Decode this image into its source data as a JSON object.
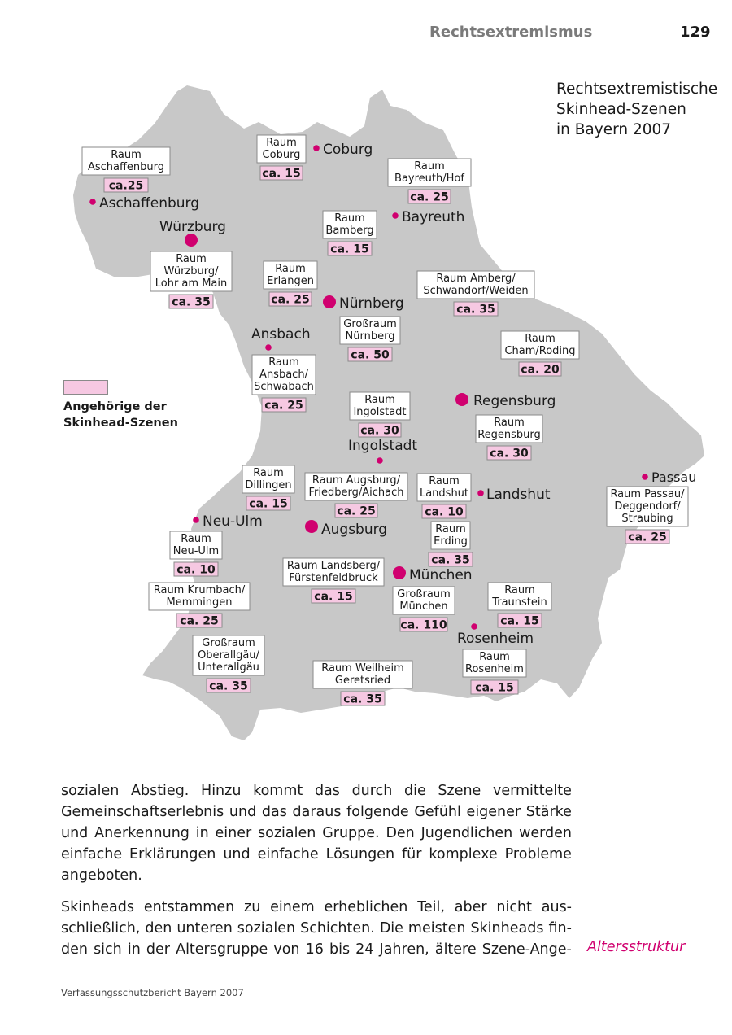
{
  "header": {
    "section": "Rechtsextremismus",
    "page_number": "129"
  },
  "map": {
    "title": [
      "Rechtsextremistische",
      "Skinhead-Szenen",
      "in Bayern 2007"
    ],
    "legend": [
      "Angehörige der",
      "Skinhead-Szenen"
    ],
    "colors": {
      "land": "#c8c8c8",
      "marker": "#d0006f",
      "count_fill": "#f6c8e2",
      "label_fill": "#ffffff",
      "border": "#8a8a8a"
    },
    "cities": [
      {
        "name": "Coburg",
        "size": "small"
      },
      {
        "name": "Aschaffenburg",
        "size": "small"
      },
      {
        "name": "Bayreuth",
        "size": "small"
      },
      {
        "name": "Würzburg",
        "size": "large"
      },
      {
        "name": "Nürnberg",
        "size": "large"
      },
      {
        "name": "Ansbach",
        "size": "small"
      },
      {
        "name": "Regensburg",
        "size": "large"
      },
      {
        "name": "Ingolstadt",
        "size": "small"
      },
      {
        "name": "Passau",
        "size": "small"
      },
      {
        "name": "Landshut",
        "size": "small"
      },
      {
        "name": "Neu-Ulm",
        "size": "small"
      },
      {
        "name": "Augsburg",
        "size": "large"
      },
      {
        "name": "München",
        "size": "large"
      },
      {
        "name": "Rosenheim",
        "size": "small"
      }
    ],
    "scenes": [
      {
        "label": [
          "Raum",
          "Aschaffenburg"
        ],
        "count": "ca.25"
      },
      {
        "label": [
          "Raum",
          "Coburg"
        ],
        "count": "ca. 15"
      },
      {
        "label": [
          "Raum",
          "Bayreuth/Hof"
        ],
        "count": "ca. 25"
      },
      {
        "label": [
          "Raum",
          "Bamberg"
        ],
        "count": "ca. 15"
      },
      {
        "label": [
          "Raum",
          "Würzburg/",
          "Lohr am Main"
        ],
        "count": "ca. 35"
      },
      {
        "label": [
          "Raum",
          "Erlangen"
        ],
        "count": "ca. 25"
      },
      {
        "label": [
          "Raum Amberg/",
          "Schwandorf/Weiden"
        ],
        "count": "ca. 35"
      },
      {
        "label": [
          "Großraum",
          "Nürnberg"
        ],
        "count": "ca. 50"
      },
      {
        "label": [
          "Raum",
          "Cham/Roding"
        ],
        "count": "ca. 20"
      },
      {
        "label": [
          "Raum",
          "Ansbach/",
          "Schwabach"
        ],
        "count": "ca. 25"
      },
      {
        "label": [
          "Raum",
          "Ingolstadt"
        ],
        "count": "ca. 30"
      },
      {
        "label": [
          "Raum",
          "Regensburg"
        ],
        "count": "ca. 30"
      },
      {
        "label": [
          "Raum",
          "Dillingen"
        ],
        "count": "ca. 15"
      },
      {
        "label": [
          "Raum Augsburg/",
          "Friedberg/Aichach"
        ],
        "count": "ca. 25"
      },
      {
        "label": [
          "Raum",
          "Landshut"
        ],
        "count": "ca. 10"
      },
      {
        "label": [
          "Raum Passau/",
          "Deggendorf/",
          "Straubing"
        ],
        "count": "ca. 25"
      },
      {
        "label": [
          "Raum",
          "Neu-Ulm"
        ],
        "count": "ca. 10"
      },
      {
        "label": [
          "Raum",
          "Erding"
        ],
        "count": "ca. 35"
      },
      {
        "label": [
          "Raum Landsberg/",
          "Fürstenfeldbruck"
        ],
        "count": "ca. 15"
      },
      {
        "label": [
          "Raum Krumbach/",
          "Memmingen"
        ],
        "count": "ca. 25"
      },
      {
        "label": [
          "Großraum",
          "München"
        ],
        "count": "ca. 110"
      },
      {
        "label": [
          "Raum",
          "Traunstein"
        ],
        "count": "ca. 15"
      },
      {
        "label": [
          "Großraum",
          "Oberallgäu/",
          "Unterallgäu"
        ],
        "count": "ca. 35"
      },
      {
        "label": [
          "Raum Weilheim",
          "Geretsried"
        ],
        "count": "ca. 35"
      },
      {
        "label": [
          "Raum",
          "Rosenheim"
        ],
        "count": "ca. 15"
      }
    ]
  },
  "body": {
    "paragraph1": [
      "sozialen Abstieg. Hinzu kommt das durch die Szene vermittelte",
      "Gemeinschaftserlebnis und das daraus folgende Gefühl eigener Stärke",
      "und Anerkennung in einer sozialen Gruppe. Den Jugendlichen werden",
      "einfache Erklärungen und einfache Lösungen für komplexe Probleme",
      "angeboten."
    ],
    "paragraph2": [
      "Skinheads entstammen zu einem erheblichen Teil, aber nicht aus-",
      "schließlich, den unteren sozialen Schichten. Die meisten Skinheads fin-",
      "den sich in der Altersgruppe von 16 bis 24 Jahren, ältere Szene-Ange-"
    ],
    "margin_note": "Altersstruktur"
  },
  "footer": "Verfassungsschutzbericht Bayern 2007"
}
